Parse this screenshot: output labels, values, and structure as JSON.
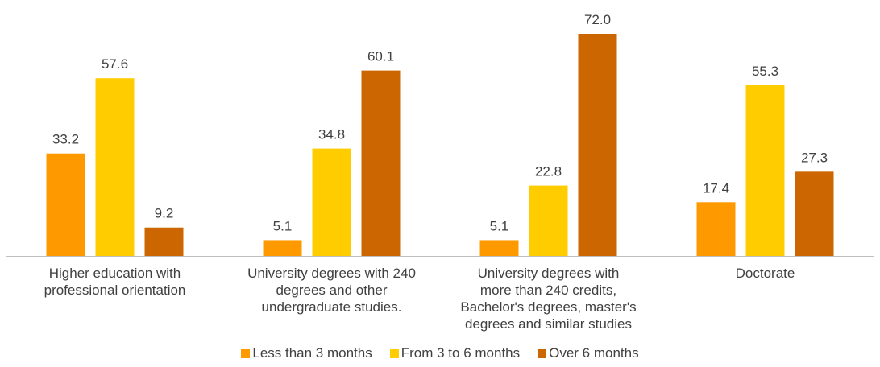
{
  "chart_data": {
    "type": "bar",
    "categories": [
      "Higher education with\nprofessional orientation",
      "University degrees with 240\ndegrees and other\nundergraduate studies.",
      "University degrees with\nmore than 240 credits,\nBachelor's degrees, master's\ndegrees and similar studies",
      "Doctorate"
    ],
    "series": [
      {
        "name": "Less than 3 months",
        "color": "#FF9900",
        "values": [
          33.2,
          5.1,
          5.1,
          17.4
        ],
        "labels": [
          "33.2",
          "5.1",
          "5.1",
          "17.4"
        ]
      },
      {
        "name": "From 3 to 6 months",
        "color": "#FFCC00",
        "values": [
          57.6,
          34.8,
          22.8,
          55.3
        ],
        "labels": [
          "57.6",
          "34.8",
          "22.8",
          "55.3"
        ]
      },
      {
        "name": "Over 6 months",
        "color": "#CC6600",
        "values": [
          9.2,
          60.1,
          72.0,
          27.3
        ],
        "labels": [
          "9.2",
          "60.1",
          "72.0",
          "27.3"
        ]
      }
    ],
    "ylim": [
      0,
      72
    ],
    "grid": false,
    "legend_position": "bottom"
  }
}
